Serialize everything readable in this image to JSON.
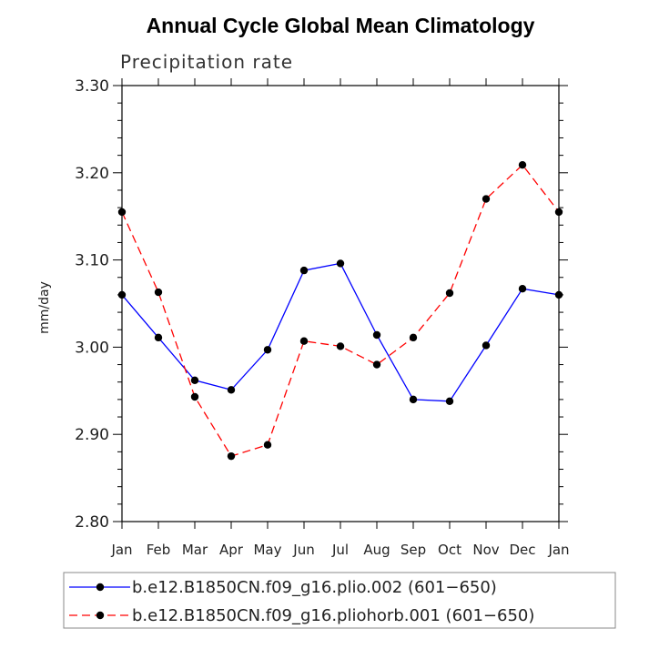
{
  "chart_data": {
    "type": "line",
    "title": "Annual Cycle Global Mean Climatology",
    "subtitle": "Precipitation rate",
    "xlabel": "",
    "ylabel": "mm/day",
    "categories": [
      "Jan",
      "Feb",
      "Mar",
      "Apr",
      "May",
      "Jun",
      "Jul",
      "Aug",
      "Sep",
      "Oct",
      "Nov",
      "Dec",
      "Jan"
    ],
    "ylim": [
      2.8,
      3.3
    ],
    "yticks": [
      "2.80",
      "2.90",
      "3.00",
      "3.10",
      "3.20",
      "3.30"
    ],
    "grid": false,
    "legend_position": "bottom",
    "series": [
      {
        "name": "b.e12.B1850CN.f09_g16.plio.002 (601−650)",
        "color": "#0000ff",
        "dash": "solid",
        "marker": "filled-circle",
        "values": [
          3.06,
          3.011,
          2.962,
          2.951,
          2.997,
          3.088,
          3.096,
          3.014,
          2.94,
          2.938,
          3.002,
          3.067,
          3.06
        ]
      },
      {
        "name": "b.e12.B1850CN.f09_g16.pliohorb.001 (601−650)",
        "color": "#ff0000",
        "dash": "dashed",
        "marker": "filled-circle",
        "values": [
          3.155,
          3.063,
          2.943,
          2.875,
          2.888,
          3.007,
          3.001,
          2.98,
          3.011,
          3.062,
          3.17,
          3.209,
          3.155
        ]
      }
    ]
  }
}
